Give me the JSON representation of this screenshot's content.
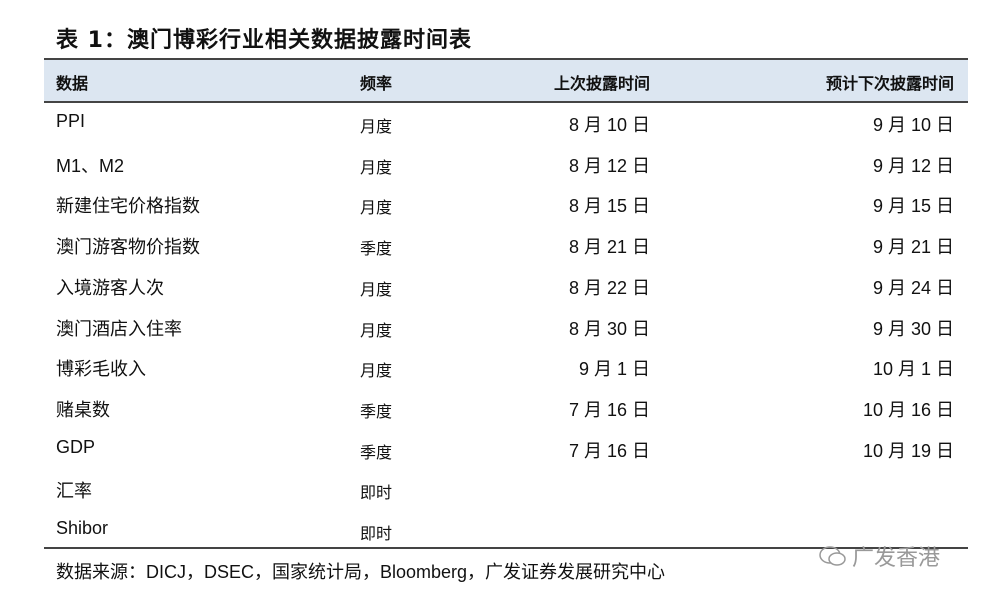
{
  "title": "表 1：澳门博彩行业相关数据披露时间表",
  "headers": [
    "数据",
    "频率",
    "上次披露时间",
    "预计下次披露时间"
  ],
  "rows": [
    [
      "PPI",
      "月度",
      "8 月 10 日",
      "9 月 10 日"
    ],
    [
      "M1、M2",
      "月度",
      "8 月 12 日",
      "9 月 12 日"
    ],
    [
      "新建住宅价格指数",
      "月度",
      "8 月 15 日",
      "9 月 15 日"
    ],
    [
      "澳门游客物价指数",
      "季度",
      "8 月 21 日",
      "9 月 21 日"
    ],
    [
      "入境游客人次",
      "月度",
      "8 月 22 日",
      "9 月 24 日"
    ],
    [
      "澳门酒店入住率",
      "月度",
      "8 月 30 日",
      "9 月 30 日"
    ],
    [
      "博彩毛收入",
      "月度",
      "9 月 1 日",
      "10 月 1 日"
    ],
    [
      "赌桌数",
      "季度",
      "7 月 16 日",
      "10 月 16 日"
    ],
    [
      "GDP",
      "季度",
      "7 月 16 日",
      "10 月 19 日"
    ],
    [
      "汇率",
      "即时",
      "",
      ""
    ],
    [
      "Shibor",
      "即时",
      "",
      ""
    ]
  ],
  "source": "数据来源：DICJ，DSEC，国家统计局，Bloomberg，广发证券发展研究中心",
  "watermark": "广发香港",
  "colors": {
    "header_bg": "#dce6f1"
  }
}
